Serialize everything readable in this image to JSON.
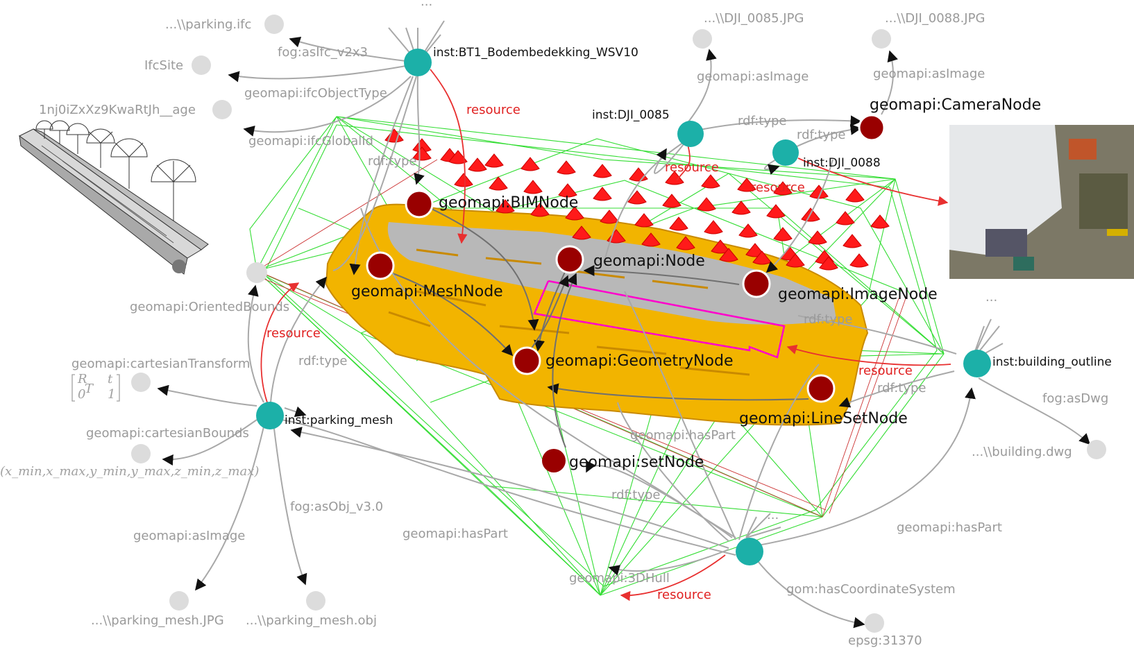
{
  "colors": {
    "instance_node": "#1cb0a8",
    "class_node": "#990000",
    "literal_node": "#d9d9d9",
    "grey_edge": "#a8a8a8",
    "resource_edge": "#e83030",
    "hull_wire": "#33dd33",
    "mesh_fill": "#f2b400",
    "boundary_magenta": "#ff00cc"
  },
  "instances": {
    "bim": "inst:BT1_Bodembedekking_WSV10",
    "dji85": "inst:DJI_0085",
    "dji88": "inst:DJI_0088",
    "mesh": "inst:parking_mesh",
    "outline": "inst:building_outline"
  },
  "classes": {
    "camera": "geomapi:CameraNode",
    "bim": "geomapi:BIMNode",
    "node": "geomapi:Node",
    "mesh": "geomapi:MeshNode",
    "image": "geomapi:ImageNode",
    "geometry": "geomapi:GeometryNode",
    "lineset": "geomapi:LineSetNode",
    "set": "geomapi:setNode"
  },
  "literals": {
    "parking_ifc": "...\\\\parking.ifc",
    "ifcsite": "IfcSite",
    "global_id": "1nj0iZxXz9KwaRtJh__age",
    "dji85_jpg": "...\\\\DJI_0085.JPG",
    "dji88_jpg": "...\\\\DJI_0088.JPG",
    "oriented_bounds": "geomapi:OrientedBounds",
    "cartesian_transform": "geomapi:cartesianTransform",
    "cartesian_bounds": "geomapi:cartesianBounds",
    "bounds_tuple": "(x_min,x_max,y_min,y_max,z_min,z_max)",
    "mesh_jpg": "...\\\\parking_mesh.JPG",
    "mesh_obj": "...\\\\parking_mesh.obj",
    "building_dwg": "...\\\\building.dwg",
    "epsg": "epsg:31370",
    "three_d_hull": "geomapi:3DHull",
    "ellipsis": "...",
    "matrix_r": "R",
    "matrix_t": "t",
    "matrix_0t": "0",
    "matrix_sup": "T",
    "matrix_1": "1"
  },
  "predicates": {
    "as_ifc": "fog:asIfc_v2x3",
    "ifc_object_type": "geomapi:ifcObjectType",
    "ifc_global_id": "geomapi:ifcGlobalId",
    "rdf_type": "rdf:type",
    "as_image": "geomapi:asImage",
    "resource": "resource",
    "as_obj": "fog:asObj_v3.0",
    "has_part": "geomapi:hasPart",
    "as_dwg": "fog:asDwg",
    "has_cs": "gom:hasCoordinateSystem"
  }
}
